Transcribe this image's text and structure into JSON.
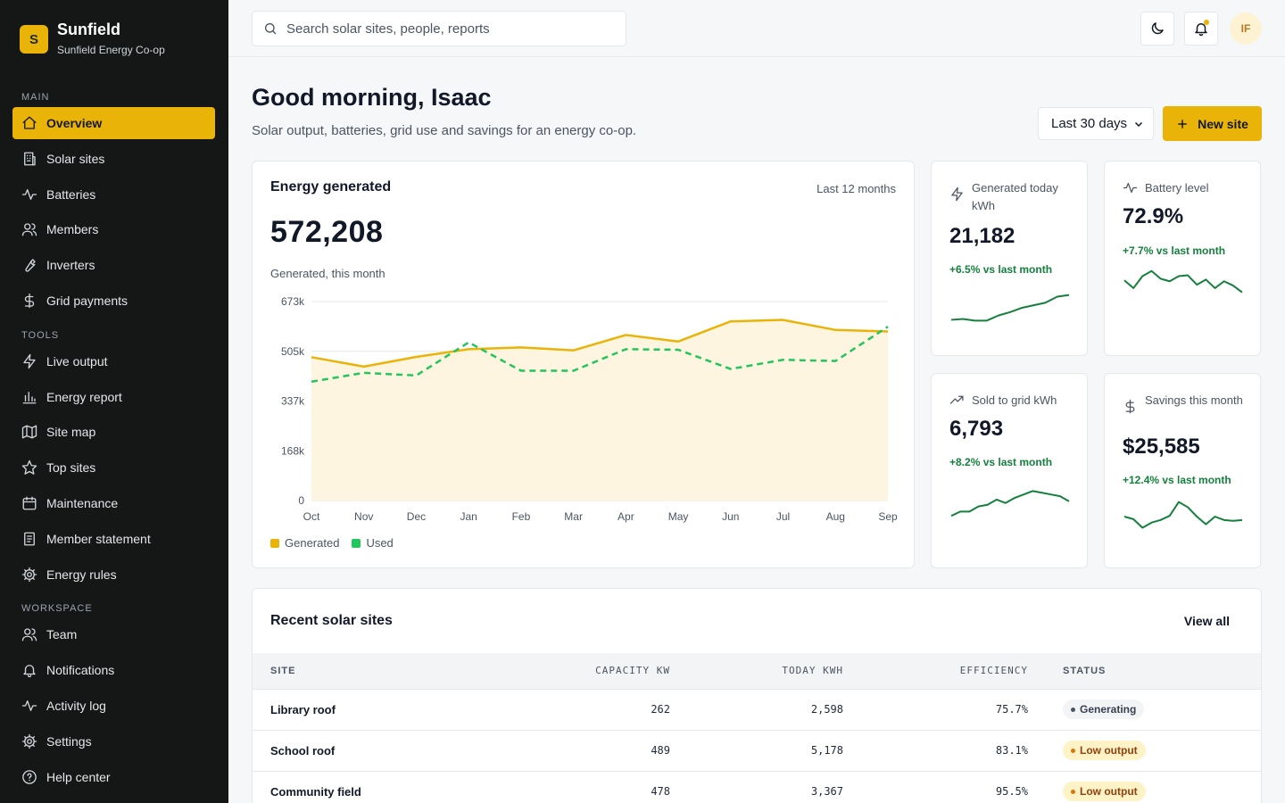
{
  "brand": {
    "logo_letter": "S",
    "name": "Sunfield",
    "org": "Sunfield Energy Co-op"
  },
  "nav": {
    "sections": [
      {
        "title": "MAIN",
        "items": [
          {
            "label": "Overview",
            "icon": "home-icon",
            "active": true
          },
          {
            "label": "Solar sites",
            "icon": "building-icon"
          },
          {
            "label": "Batteries",
            "icon": "activity-icon"
          },
          {
            "label": "Members",
            "icon": "users-icon"
          },
          {
            "label": "Inverters",
            "icon": "wrench-icon"
          },
          {
            "label": "Grid payments",
            "icon": "dollar-icon"
          }
        ]
      },
      {
        "title": "TOOLS",
        "items": [
          {
            "label": "Live output",
            "icon": "zap-icon"
          },
          {
            "label": "Energy report",
            "icon": "bar-chart-icon"
          },
          {
            "label": "Site map",
            "icon": "map-icon"
          },
          {
            "label": "Top sites",
            "icon": "star-icon"
          },
          {
            "label": "Maintenance",
            "icon": "calendar-icon"
          },
          {
            "label": "Member statement",
            "icon": "document-icon"
          },
          {
            "label": "Energy rules",
            "icon": "gear-icon"
          }
        ]
      },
      {
        "title": "WORKSPACE",
        "items": [
          {
            "label": "Team",
            "icon": "users-icon"
          },
          {
            "label": "Notifications",
            "icon": "bell-icon"
          },
          {
            "label": "Activity log",
            "icon": "activity-icon"
          },
          {
            "label": "Settings",
            "icon": "gear-icon"
          },
          {
            "label": "Help center",
            "icon": "help-circle-icon"
          }
        ]
      }
    ]
  },
  "topbar": {
    "search_placeholder": "Search solar sites, people, reports",
    "avatar_initials": "IF"
  },
  "header": {
    "greeting": "Good morning, Isaac",
    "subtitle": "Solar output, batteries, grid use and savings for an energy co-op.",
    "range_value": "Last 30 days",
    "new_button": "New site"
  },
  "energy_card": {
    "title": "Energy generated",
    "period": "Last 12 months",
    "value": "572,208",
    "caption": "Generated, this month"
  },
  "chart_data": {
    "type": "area",
    "title": "Energy generated",
    "categories": [
      "Oct",
      "Nov",
      "Dec",
      "Jan",
      "Feb",
      "Mar",
      "Apr",
      "May",
      "Jun",
      "Jul",
      "Aug",
      "Sep"
    ],
    "y_ticks": [
      "0",
      "168k",
      "337k",
      "505k",
      "673k"
    ],
    "ylim": [
      0,
      673000
    ],
    "grid": true,
    "legend": "bottom-left",
    "series": [
      {
        "name": "Generated",
        "color": "#eab308",
        "style": "solid-area",
        "values": [
          485000,
          453000,
          486000,
          512000,
          518000,
          508000,
          560000,
          538000,
          606000,
          611000,
          577000,
          572000
        ]
      },
      {
        "name": "Used",
        "color": "#22c55e",
        "style": "dashed",
        "values": [
          402000,
          432000,
          423000,
          535000,
          439000,
          439000,
          512000,
          510000,
          445000,
          476000,
          472000,
          588000
        ]
      }
    ]
  },
  "kpis": [
    {
      "label": "Generated today kWh",
      "value": "21,182",
      "delta": "+6.5% vs last month",
      "icon": "zap-icon",
      "spark": [
        31,
        32,
        30,
        30,
        36,
        40,
        45,
        48,
        51,
        58,
        60
      ]
    },
    {
      "label": "Battery level",
      "value": "72.9%",
      "delta": "+7.7% vs last month",
      "icon": "activity-icon",
      "spark": [
        52,
        43,
        57,
        63,
        54,
        51,
        57,
        58,
        47,
        53,
        43,
        51,
        46,
        38
      ]
    },
    {
      "label": "Sold to grid kWh",
      "value": "6,793",
      "delta": "+8.2% vs last month",
      "icon": "trending-up-icon",
      "spark": [
        25,
        30,
        30,
        36,
        38,
        44,
        40,
        46,
        50,
        54,
        52,
        50,
        48,
        42
      ]
    },
    {
      "label": "Savings this month",
      "value": "$25,585",
      "delta": "+12.4% vs last month",
      "icon": "dollar-icon",
      "spark": [
        45,
        42,
        32,
        38,
        41,
        46,
        62,
        56,
        45,
        36,
        45,
        41,
        40,
        41
      ]
    }
  ],
  "table": {
    "title": "Recent solar sites",
    "view_all": "View all",
    "columns": [
      "SITE",
      "CAPACITY KW",
      "TODAY KWH",
      "EFFICIENCY",
      "STATUS"
    ],
    "rows": [
      {
        "site": "Library roof",
        "capacity": "262",
        "today": "2,598",
        "efficiency": "75.7%",
        "status": "Generating",
        "status_kind": "gen"
      },
      {
        "site": "School roof",
        "capacity": "489",
        "today": "5,178",
        "efficiency": "83.1%",
        "status": "Low output",
        "status_kind": "low"
      },
      {
        "site": "Community field",
        "capacity": "478",
        "today": "3,367",
        "efficiency": "95.5%",
        "status": "Low output",
        "status_kind": "low"
      }
    ]
  }
}
